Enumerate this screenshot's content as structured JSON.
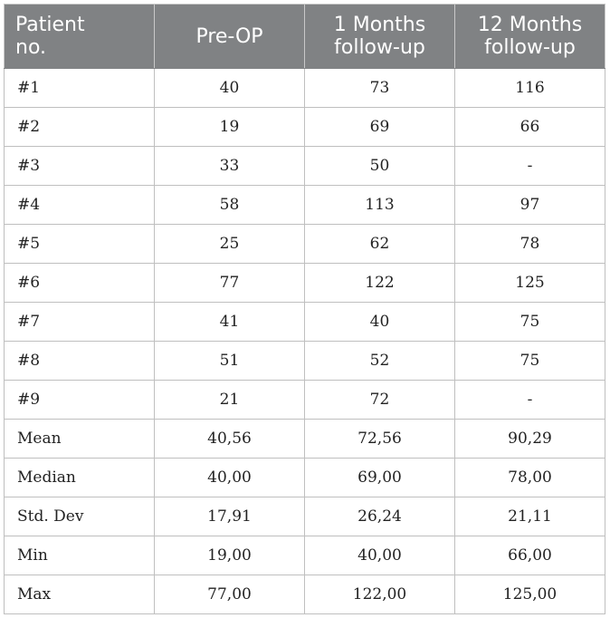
{
  "table": {
    "headers": [
      "Patient\nno.",
      "Pre-OP",
      "1 Months\nfollow-up",
      "12 Months\nfollow-up"
    ],
    "rows": [
      [
        "#1",
        "40",
        "73",
        "116"
      ],
      [
        "#2",
        "19",
        "69",
        "66"
      ],
      [
        "#3",
        "33",
        "50",
        "-"
      ],
      [
        "#4",
        "58",
        "113",
        "97"
      ],
      [
        "#5",
        "25",
        "62",
        "78"
      ],
      [
        "#6",
        "77",
        "122",
        "125"
      ],
      [
        "#7",
        "41",
        "40",
        "75"
      ],
      [
        "#8",
        "51",
        "52",
        "75"
      ],
      [
        "#9",
        "21",
        "72",
        "-"
      ],
      [
        "Mean",
        "40,56",
        "72,56",
        "90,29"
      ],
      [
        "Median",
        "40,00",
        "69,00",
        "78,00"
      ],
      [
        "Std. Dev",
        "17,91",
        "26,24",
        "21,11"
      ],
      [
        "Min",
        "19,00",
        "40,00",
        "66,00"
      ],
      [
        "Max",
        "77,00",
        "122,00",
        "125,00"
      ]
    ]
  },
  "colors": {
    "header_bg": "#808284",
    "header_text": "#ffffff",
    "border": "#bfbfbf"
  }
}
